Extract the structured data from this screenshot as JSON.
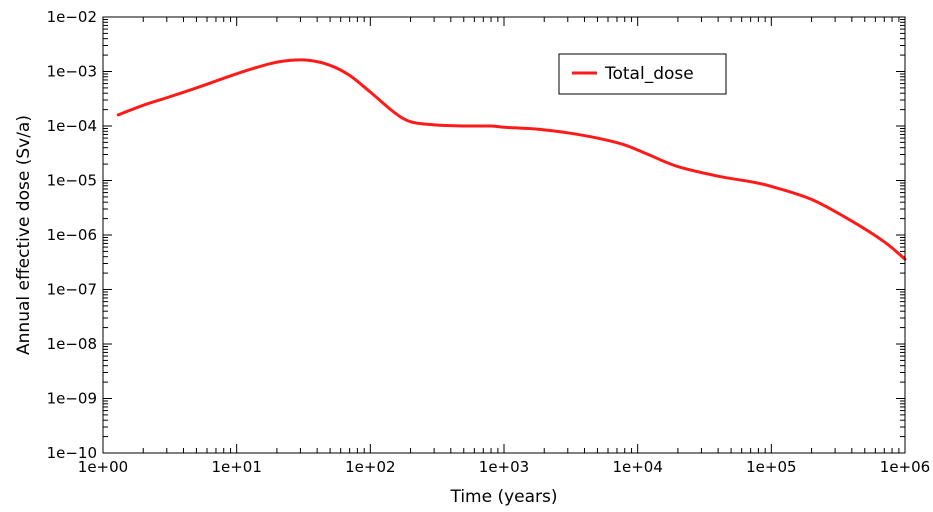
{
  "chart_data": {
    "type": "line",
    "title": "",
    "xlabel": "Time  (years)",
    "ylabel": "Annual effective dose  (Sv/a)",
    "x_scale": "log",
    "y_scale": "log",
    "xlim": [
      1,
      1000000
    ],
    "ylim": [
      1e-10,
      0.01
    ],
    "grid": false,
    "legend_position": "top-right",
    "x_ticks": [
      {
        "value": 1,
        "label": "1e+00"
      },
      {
        "value": 10,
        "label": "1e+01"
      },
      {
        "value": 100,
        "label": "1e+02"
      },
      {
        "value": 1000,
        "label": "1e+03"
      },
      {
        "value": 10000,
        "label": "1e+04"
      },
      {
        "value": 100000,
        "label": "1e+05"
      },
      {
        "value": 1000000,
        "label": "1e+06"
      }
    ],
    "y_ticks": [
      {
        "value": 1e-10,
        "label": "1e−10"
      },
      {
        "value": 1e-09,
        "label": "1e−09"
      },
      {
        "value": 1e-08,
        "label": "1e−08"
      },
      {
        "value": 1e-07,
        "label": "1e−07"
      },
      {
        "value": 1e-06,
        "label": "1e−06"
      },
      {
        "value": 1e-05,
        "label": "1e−05"
      },
      {
        "value": 0.0001,
        "label": "1e−04"
      },
      {
        "value": 0.001,
        "label": "1e−03"
      },
      {
        "value": 0.01,
        "label": "1e−02"
      }
    ],
    "series": [
      {
        "name": "Total_dose",
        "color": "#ff1a1a",
        "x": [
          1.3,
          2,
          3,
          5,
          8,
          12,
          18,
          25,
          35,
          50,
          70,
          100,
          150,
          200,
          300,
          500,
          800,
          1000,
          1500,
          2000,
          3000,
          5000,
          8000,
          12000,
          20000,
          40000,
          70000,
          100000,
          200000,
          400000,
          700000,
          1000000
        ],
        "y": [
          0.00016,
          0.00024,
          0.00033,
          0.0005,
          0.00075,
          0.00105,
          0.0014,
          0.0016,
          0.0016,
          0.0013,
          0.00085,
          0.00042,
          0.00018,
          0.00012,
          0.000105,
          0.0001,
          0.0001,
          9.5e-05,
          9e-05,
          8.5e-05,
          7.5e-05,
          6e-05,
          4.5e-05,
          3e-05,
          1.8e-05,
          1.2e-05,
          9.5e-06,
          7.8e-06,
          4.5e-06,
          1.8e-06,
          7.5e-07,
          3.6e-07
        ]
      }
    ]
  }
}
